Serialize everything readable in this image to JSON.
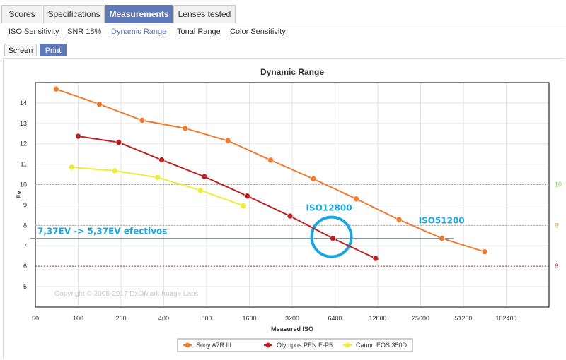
{
  "tabs": [
    {
      "label": "Scores",
      "active": false
    },
    {
      "label": "Specifications",
      "active": false
    },
    {
      "label": "Measurements",
      "active": true
    },
    {
      "label": "Lenses tested",
      "active": false
    }
  ],
  "subtabs": [
    {
      "label": "ISO Sensitivity",
      "active": false
    },
    {
      "label": "SNR 18%",
      "active": false
    },
    {
      "label": "Dynamic Range",
      "active": true
    },
    {
      "label": "Tonal Range",
      "active": false
    },
    {
      "label": "Color Sensitivity",
      "active": false
    }
  ],
  "buttons": [
    {
      "label": "Screen",
      "active": false
    },
    {
      "label": "Print",
      "active": true
    }
  ],
  "chart_data": {
    "type": "line",
    "title": "Dynamic Range",
    "xlabel": "Measured ISO",
    "ylabel": "Ev",
    "x_scale": "log2",
    "xlim": [
      50,
      204800
    ],
    "ylim": [
      4,
      15
    ],
    "x_ticks": [
      50,
      100,
      200,
      400,
      800,
      1600,
      3200,
      6400,
      12800,
      25600,
      51200,
      102400
    ],
    "y_ticks": [
      5,
      6,
      7,
      8,
      9,
      10,
      11,
      12,
      13,
      14
    ],
    "grid": true,
    "legend_position": "bottom",
    "series": [
      {
        "name": "Sony A7R III",
        "color": "#f07b2f",
        "x": [
          70,
          141,
          282,
          565,
          1130,
          2259,
          4519,
          9036,
          18073,
          36146,
          72292
        ],
        "y": [
          14.68,
          13.94,
          13.15,
          12.76,
          12.15,
          11.2,
          10.28,
          9.3,
          8.28,
          7.37,
          6.71
        ]
      },
      {
        "name": "Olympus PEN E-P5",
        "color": "#bf2121",
        "x": [
          100,
          193,
          387,
          773,
          1546,
          3093,
          6186,
          12371
        ],
        "y": [
          12.37,
          12.07,
          11.21,
          10.39,
          9.44,
          8.46,
          7.37,
          6.38
        ]
      },
      {
        "name": "Canon EOS 350D",
        "color": "#eded3a",
        "x": [
          90,
          181,
          362,
          724,
          1447
        ],
        "y": [
          10.85,
          10.68,
          10.35,
          9.72,
          8.97
        ]
      }
    ],
    "reference_lines": [
      {
        "y": 10,
        "label": "10",
        "color": "#7cd04a"
      },
      {
        "y": 8,
        "label": "8",
        "color": "#e8a24a"
      },
      {
        "y": 6,
        "label": "6",
        "color": "#b3353c"
      }
    ],
    "annotations": [
      {
        "text": "7,37EV -> 5,37EV efectivos",
        "y": 7.37,
        "color": "#1aa7e0"
      },
      {
        "text": "ISO12800",
        "color": "#1aa7e0"
      },
      {
        "text": "ISO51200",
        "color": "#1aa7e0"
      }
    ],
    "watermark": "Copyright © 2008-2017 DxOMark Image Labs"
  }
}
